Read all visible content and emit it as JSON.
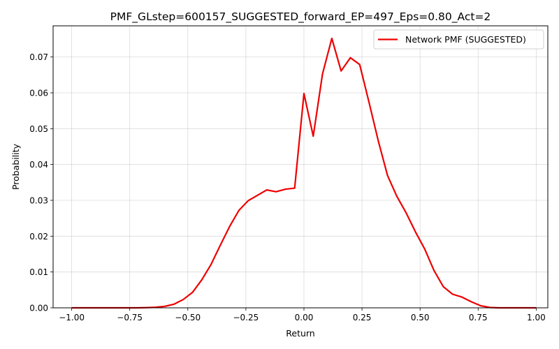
{
  "chart_data": {
    "type": "line",
    "title": "PMF_GLstep=600157_SUGGESTED_forward_EP=497_Eps=0.80_Act=2",
    "xlabel": "Return",
    "ylabel": "Probability",
    "xlim": [
      -1.08,
      1.05
    ],
    "ylim": [
      0,
      0.0787
    ],
    "grid": true,
    "legend_position": "top-right",
    "x_ticks": [
      -1.0,
      -0.75,
      -0.5,
      -0.25,
      0.0,
      0.25,
      0.5,
      0.75,
      1.0
    ],
    "x_tick_labels": [
      "−1.00",
      "−0.75",
      "−0.50",
      "−0.25",
      "0.00",
      "0.25",
      "0.50",
      "0.75",
      "1.00"
    ],
    "y_ticks": [
      0,
      0.01,
      0.02,
      0.03,
      0.04,
      0.05,
      0.06,
      0.07
    ],
    "y_tick_labels": [
      "0.00",
      "0.01",
      "0.02",
      "0.03",
      "0.04",
      "0.05",
      "0.06",
      "0.07"
    ],
    "series": [
      {
        "name": "Network PMF (SUGGESTED)",
        "color": "#ee0000",
        "x": [
          -1.0,
          -0.96,
          -0.92,
          -0.88,
          -0.84,
          -0.8,
          -0.76,
          -0.72,
          -0.68,
          -0.64,
          -0.6,
          -0.56,
          -0.52,
          -0.48,
          -0.44,
          -0.4,
          -0.36,
          -0.32,
          -0.28,
          -0.24,
          -0.2,
          -0.16,
          -0.12,
          -0.08,
          -0.04,
          0.0,
          0.04,
          0.08,
          0.12,
          0.16,
          0.2,
          0.24,
          0.28,
          0.32,
          0.36,
          0.4,
          0.44,
          0.48,
          0.52,
          0.56,
          0.6,
          0.64,
          0.68,
          0.72,
          0.76,
          0.8,
          0.84,
          0.88,
          0.92,
          0.96,
          1.0
        ],
        "y": [
          0.0,
          0.0,
          0.0,
          0.0,
          0.0,
          0.0,
          0.0,
          0.0,
          5e-05,
          0.00015,
          0.0004,
          0.001,
          0.0023,
          0.0043,
          0.0078,
          0.0121,
          0.0175,
          0.0227,
          0.0272,
          0.0299,
          0.0314,
          0.0329,
          0.0324,
          0.0331,
          0.0334,
          0.0598,
          0.0479,
          0.0653,
          0.0752,
          0.0661,
          0.0698,
          0.0679,
          0.0574,
          0.0466,
          0.0369,
          0.0311,
          0.0265,
          0.0212,
          0.0164,
          0.0104,
          0.0059,
          0.0038,
          0.003,
          0.0017,
          0.0006,
          0.0001,
          0.0,
          0.0,
          0.0,
          0.0,
          0.0
        ]
      }
    ]
  }
}
